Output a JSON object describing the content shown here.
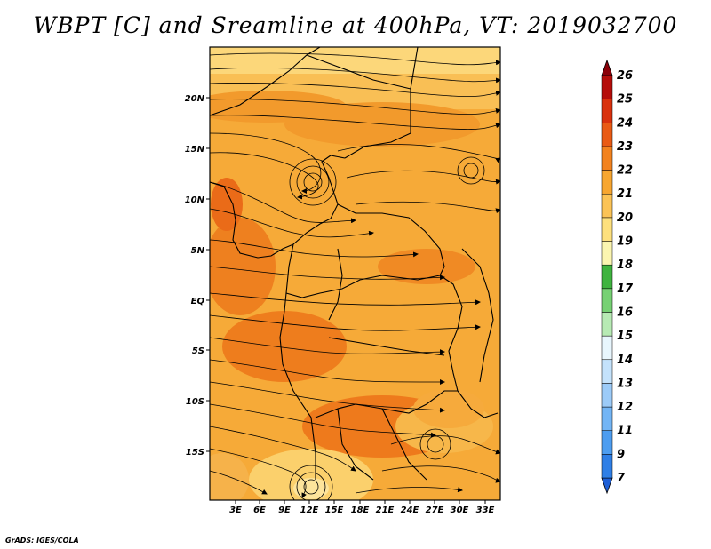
{
  "title": "WBPT [C] and Sreamline at 400hPa, VT: 2019032700",
  "credit": "GrADS: IGES/COLA",
  "map": {
    "lat_ticks": [
      "20N",
      "15N",
      "10N",
      "5N",
      "EQ",
      "5S",
      "10S",
      "15S"
    ],
    "lon_ticks": [
      "3E",
      "6E",
      "9E",
      "12E",
      "15E",
      "18E",
      "21E",
      "24E",
      "27E",
      "30E",
      "33E"
    ],
    "field": "WBPT",
    "field_units": "C",
    "level": "400hPa",
    "overlay": "streamlines"
  },
  "colorbar": {
    "labels": [
      "7",
      "9",
      "11",
      "12",
      "13",
      "14",
      "15",
      "16",
      "17",
      "18",
      "19",
      "20",
      "21",
      "22",
      "23",
      "24",
      "25",
      "26"
    ],
    "colors": [
      "#1e5fd6",
      "#2f7fe6",
      "#4d9df0",
      "#73b5f5",
      "#9ccbf8",
      "#c4e2fb",
      "#e8f6fd",
      "#b7eab4",
      "#77d174",
      "#3fb33f",
      "#fbf5b0",
      "#fde07d",
      "#fbc356",
      "#f7a630",
      "#f2821e",
      "#e95a14",
      "#d9310d",
      "#b50d0a",
      "#8a0008"
    ]
  }
}
